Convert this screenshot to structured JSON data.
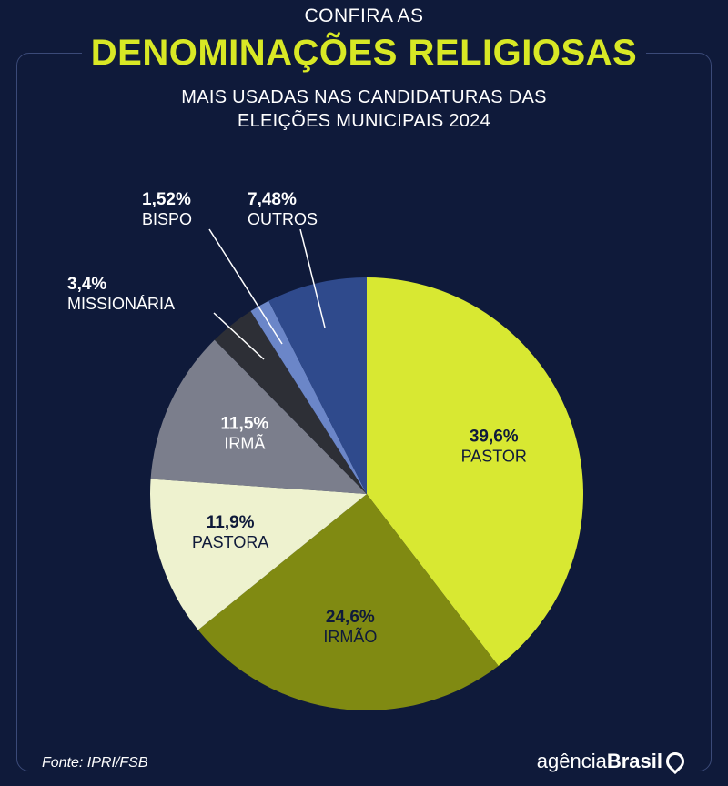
{
  "header": {
    "pre_title": "CONFIRA AS",
    "title": "DENOMINAÇÕES RELIGIOSAS",
    "subtitle_line1": "MAIS USADAS NAS CANDIDATURAS DAS",
    "subtitle_line2": "ELEIÇÕES MUNICIPAIS 2024"
  },
  "footer": {
    "source": "Fonte:  IPRI/FSB",
    "brand_part1": "agência",
    "brand_part2": "Brasil",
    "brand_icon": "agencia-brasil-logo-icon"
  },
  "colors": {
    "background": "#0f1a3a",
    "accent": "#d8e825"
  },
  "chart_data": {
    "type": "pie",
    "start": "12 o'clock, clockwise",
    "slices": [
      {
        "label": "PASTOR",
        "value_text": "39,6%",
        "value": 39.6,
        "color": "#d8e832",
        "text_color": "#0f1a3a"
      },
      {
        "label": "IRMÃO",
        "value_text": "24,6%",
        "value": 24.6,
        "color": "#808a12",
        "text_color": "#0f1a3a"
      },
      {
        "label": "PASTORA",
        "value_text": "11,9%",
        "value": 11.9,
        "color": "#eef2cf",
        "text_color": "#0f1a3a"
      },
      {
        "label": "IRMÃ",
        "value_text": "11,5%",
        "value": 11.5,
        "color": "#7b7e8c",
        "text_color": "#ffffff"
      },
      {
        "label": "MISSIONÁRIA",
        "value_text": "3,4%",
        "value": 3.4,
        "color": "#2d2f36",
        "text_color": "#ffffff"
      },
      {
        "label": "BISPO",
        "value_text": "1,52%",
        "value": 1.52,
        "color": "#6b86c8",
        "text_color": "#ffffff"
      },
      {
        "label": "OUTROS",
        "value_text": "7,48%",
        "value": 7.48,
        "color": "#2f4a8c",
        "text_color": "#ffffff"
      }
    ]
  }
}
